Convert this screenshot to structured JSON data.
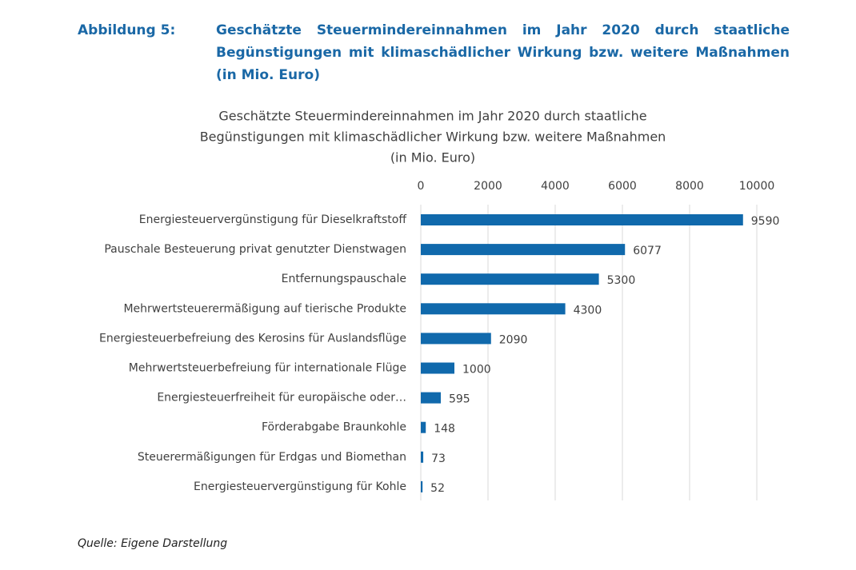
{
  "header": {
    "label": "Abbildung 5:",
    "title": "Geschätzte Steuermindereinnahmen im Jahr 2020 durch staatliche Begünstigungen mit klimaschädlicher Wirkung bzw. weitere Maßnahmen (in Mio. Euro)"
  },
  "chart_data": {
    "type": "bar",
    "orientation": "horizontal",
    "title": [
      "Geschätzte Steuermindereinnahmen im Jahr 2020 durch staatliche",
      "Begünstigungen mit klimaschädlicher Wirkung bzw. weitere Maßnahmen",
      "(in Mio. Euro)"
    ],
    "categories": [
      "Energiesteuervergünstigung für Dieselkraftstoff",
      "Pauschale Besteuerung privat genutzter Dienstwagen",
      "Entfernungspauschale",
      "Mehrwertsteuerermäßigung auf tierische Produkte",
      "Energiesteuerbefreiung des Kerosins für Auslandsflüge",
      "Mehrwertsteuerbefreiung für internationale Flüge",
      "Energiesteuerfreiheit für europäische oder…",
      "Förderabgabe Braunkohle",
      "Steuerermäßigungen für Erdgas und Biomethan",
      "Energiesteuervergünstigung für Kohle"
    ],
    "values": [
      9590,
      6077,
      5300,
      4300,
      2090,
      1000,
      595,
      148,
      73,
      52
    ],
    "color": "#1069ac",
    "xlim": [
      0,
      10000
    ],
    "xticks": [
      0,
      2000,
      4000,
      6000,
      8000,
      10000
    ],
    "grid": true
  },
  "source": "Quelle: Eigene Darstellung"
}
